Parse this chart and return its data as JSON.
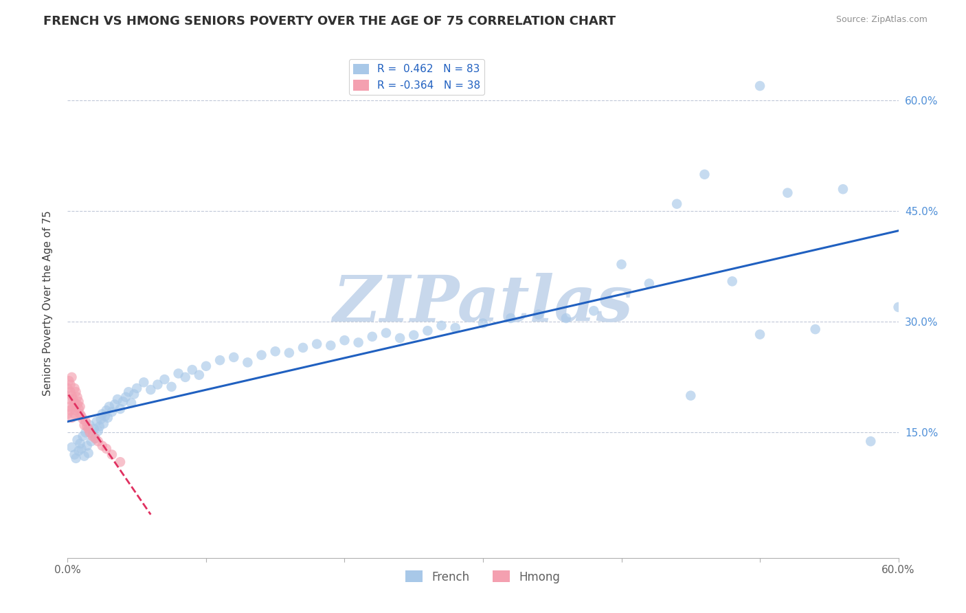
{
  "title": "FRENCH VS HMONG SENIORS POVERTY OVER THE AGE OF 75 CORRELATION CHART",
  "source": "Source: ZipAtlas.com",
  "ylabel": "Seniors Poverty Over the Age of 75",
  "french_R": 0.462,
  "french_N": 83,
  "hmong_R": -0.364,
  "hmong_N": 38,
  "xlim": [
    0.0,
    0.6
  ],
  "ylim": [
    -0.02,
    0.67
  ],
  "french_color": "#a8c8e8",
  "hmong_color": "#f4a0b0",
  "french_line_color": "#2060c0",
  "hmong_line_color": "#e03060",
  "watermark_text": "ZIPatlas",
  "watermark_color": "#c8d8ec",
  "background_color": "#ffffff",
  "grid_color": "#c0c8d8",
  "right_ytick_color": "#5090d8",
  "title_color": "#303030",
  "source_color": "#909090",
  "tick_label_color": "#606060",
  "title_fontsize": 13,
  "axis_fontsize": 11,
  "tick_fontsize": 11,
  "legend_fontsize": 11,
  "dot_size": 110,
  "dot_alpha": 0.65,
  "french_x": [
    0.003,
    0.005,
    0.006,
    0.007,
    0.008,
    0.009,
    0.01,
    0.011,
    0.012,
    0.013,
    0.014,
    0.015,
    0.016,
    0.017,
    0.018,
    0.019,
    0.02,
    0.021,
    0.022,
    0.023,
    0.024,
    0.025,
    0.026,
    0.027,
    0.028,
    0.029,
    0.03,
    0.032,
    0.034,
    0.036,
    0.038,
    0.04,
    0.042,
    0.044,
    0.046,
    0.048,
    0.05,
    0.055,
    0.06,
    0.065,
    0.07,
    0.075,
    0.08,
    0.085,
    0.09,
    0.095,
    0.1,
    0.11,
    0.12,
    0.13,
    0.14,
    0.15,
    0.16,
    0.17,
    0.18,
    0.19,
    0.2,
    0.21,
    0.22,
    0.23,
    0.24,
    0.25,
    0.26,
    0.27,
    0.28,
    0.3,
    0.32,
    0.34,
    0.36,
    0.38,
    0.4,
    0.42,
    0.44,
    0.46,
    0.48,
    0.5,
    0.52,
    0.54,
    0.56,
    0.58,
    0.6,
    0.5,
    0.45
  ],
  "french_y": [
    0.13,
    0.12,
    0.115,
    0.14,
    0.125,
    0.135,
    0.128,
    0.145,
    0.118,
    0.15,
    0.132,
    0.122,
    0.16,
    0.138,
    0.148,
    0.155,
    0.142,
    0.165,
    0.152,
    0.158,
    0.168,
    0.175,
    0.162,
    0.172,
    0.18,
    0.17,
    0.185,
    0.178,
    0.188,
    0.195,
    0.182,
    0.192,
    0.198,
    0.205,
    0.19,
    0.202,
    0.21,
    0.218,
    0.208,
    0.215,
    0.222,
    0.212,
    0.23,
    0.225,
    0.235,
    0.228,
    0.24,
    0.248,
    0.252,
    0.245,
    0.255,
    0.26,
    0.258,
    0.265,
    0.27,
    0.268,
    0.275,
    0.272,
    0.28,
    0.285,
    0.278,
    0.282,
    0.288,
    0.295,
    0.292,
    0.298,
    0.305,
    0.31,
    0.305,
    0.315,
    0.378,
    0.352,
    0.46,
    0.5,
    0.355,
    0.62,
    0.475,
    0.29,
    0.48,
    0.138,
    0.32,
    0.283,
    0.2
  ],
  "hmong_x": [
    0.0,
    0.0,
    0.001,
    0.001,
    0.001,
    0.002,
    0.002,
    0.002,
    0.003,
    0.003,
    0.003,
    0.004,
    0.004,
    0.005,
    0.005,
    0.005,
    0.006,
    0.006,
    0.007,
    0.007,
    0.008,
    0.008,
    0.009,
    0.009,
    0.01,
    0.011,
    0.012,
    0.013,
    0.014,
    0.015,
    0.016,
    0.018,
    0.02,
    0.022,
    0.025,
    0.028,
    0.032,
    0.038
  ],
  "hmong_y": [
    0.175,
    0.21,
    0.185,
    0.22,
    0.195,
    0.18,
    0.205,
    0.215,
    0.17,
    0.2,
    0.225,
    0.185,
    0.195,
    0.175,
    0.21,
    0.19,
    0.18,
    0.205,
    0.188,
    0.198,
    0.182,
    0.192,
    0.175,
    0.185,
    0.172,
    0.168,
    0.16,
    0.165,
    0.158,
    0.155,
    0.15,
    0.145,
    0.142,
    0.138,
    0.132,
    0.128,
    0.12,
    0.11
  ]
}
